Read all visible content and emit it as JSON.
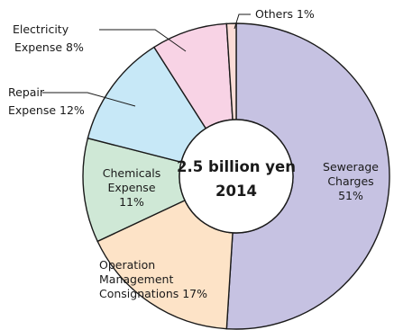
{
  "chart_data": {
    "type": "pie",
    "center_label": {
      "line1": "2.5 billion yen",
      "line2": "2014"
    },
    "slices": [
      {
        "name": "Sewerage Charges",
        "percent": 51,
        "color": "#c6c2e2",
        "label_lines": [
          "Sewerage",
          "Charges",
          "51%"
        ]
      },
      {
        "name": "Operation Management Consignations",
        "percent": 17,
        "color": "#fde3c7",
        "label_lines": [
          "Operation",
          "Management",
          "Consignations 17%"
        ]
      },
      {
        "name": "Chemicals Expense",
        "percent": 11,
        "color": "#cfe8d6",
        "label_lines": [
          "Chemicals",
          "Expense",
          "11%"
        ]
      },
      {
        "name": "Repair Expense",
        "percent": 12,
        "color": "#c7e8f7",
        "label_lines": [
          "Repair",
          "Expense 12%"
        ]
      },
      {
        "name": "Electricity Expense",
        "percent": 8,
        "color": "#f8d3e5",
        "label_lines": [
          "Electricity",
          "Expense 8%"
        ]
      },
      {
        "name": "Others",
        "percent": 1,
        "color": "#fbdcd6",
        "label_lines": [
          "Others 1%"
        ]
      }
    ]
  }
}
